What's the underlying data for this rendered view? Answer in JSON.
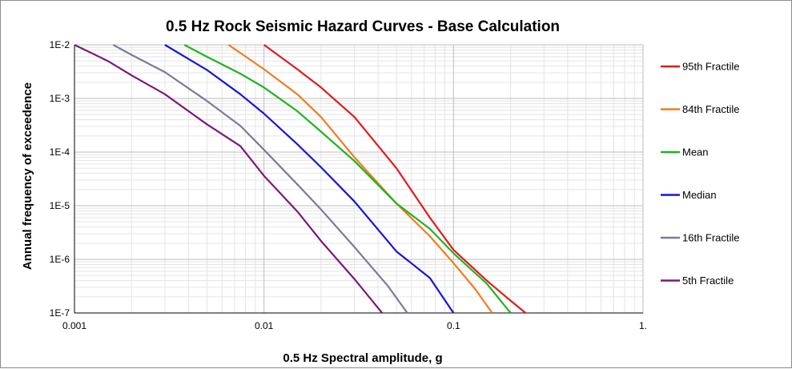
{
  "chart_data": {
    "type": "line",
    "title": "0.5 Hz Rock Seismic Hazard Curves - Base Calculation",
    "xlabel": "0.5 Hz Spectral amplitude, g",
    "ylabel": "Annual frequency of exceedence",
    "x_scale": "log",
    "y_scale": "log",
    "xlim": [
      0.001,
      1
    ],
    "ylim": [
      1e-07,
      0.01
    ],
    "x_ticks": [
      {
        "value": 0.001,
        "label": "0.001"
      },
      {
        "value": 0.01,
        "label": "0.01"
      },
      {
        "value": 0.1,
        "label": "0.1"
      },
      {
        "value": 1,
        "label": "1."
      }
    ],
    "y_ticks": [
      {
        "value": 0.01,
        "label": "1E-2"
      },
      {
        "value": 0.001,
        "label": "1E-3"
      },
      {
        "value": 0.0001,
        "label": "1E-4"
      },
      {
        "value": 1e-05,
        "label": "1E-5"
      },
      {
        "value": 1e-06,
        "label": "1E-6"
      },
      {
        "value": 1e-07,
        "label": "1E-7"
      }
    ],
    "grid": true,
    "legend_position": "right",
    "series": [
      {
        "name": "95th Fractile",
        "color": "#e01b1b",
        "x": [
          0.01,
          0.015,
          0.02,
          0.03,
          0.05,
          0.075,
          0.1,
          0.15,
          0.2,
          0.24
        ],
        "y": [
          0.01,
          0.0035,
          0.0016,
          0.00045,
          5e-05,
          6e-06,
          1.5e-06,
          4e-07,
          1.7e-07,
          1e-07
        ]
      },
      {
        "name": "84th Fractile",
        "color": "#f07d1e",
        "x": [
          0.0065,
          0.01,
          0.015,
          0.02,
          0.03,
          0.05,
          0.075,
          0.1,
          0.13,
          0.16
        ],
        "y": [
          0.01,
          0.0035,
          0.0012,
          0.00045,
          8e-05,
          1.1e-05,
          2.7e-06,
          8.5e-07,
          2.8e-07,
          1e-07
        ]
      },
      {
        "name": "Mean",
        "color": "#22b322",
        "x": [
          0.0038,
          0.005,
          0.0075,
          0.01,
          0.015,
          0.02,
          0.03,
          0.05,
          0.075,
          0.1,
          0.15,
          0.2
        ],
        "y": [
          0.01,
          0.006,
          0.0029,
          0.0016,
          0.00058,
          0.00024,
          6.8e-05,
          1.1e-05,
          3.7e-06,
          1.3e-06,
          3.5e-07,
          1e-07
        ]
      },
      {
        "name": "Median",
        "color": "#1616d8",
        "x": [
          0.003,
          0.005,
          0.0075,
          0.01,
          0.015,
          0.02,
          0.03,
          0.05,
          0.075,
          0.1
        ],
        "y": [
          0.01,
          0.0034,
          0.0012,
          0.00052,
          0.00014,
          5.2e-05,
          1.2e-05,
          1.4e-06,
          4.5e-07,
          1e-07
        ]
      },
      {
        "name": "16th Fractile",
        "color": "#7b7b9c",
        "x": [
          0.0016,
          0.002,
          0.003,
          0.005,
          0.0075,
          0.01,
          0.015,
          0.02,
          0.03,
          0.045,
          0.057
        ],
        "y": [
          0.01,
          0.0065,
          0.0031,
          0.0009,
          0.00031,
          0.00011,
          2.5e-05,
          8.5e-06,
          1.7e-06,
          3.2e-07,
          1e-07
        ]
      },
      {
        "name": "5th Fractile",
        "color": "#7a1a7a",
        "x": [
          0.001,
          0.0015,
          0.002,
          0.003,
          0.005,
          0.0075,
          0.01,
          0.015,
          0.02,
          0.03,
          0.042
        ],
        "y": [
          0.01,
          0.005,
          0.0027,
          0.0012,
          0.00033,
          0.00013,
          3.6e-05,
          7.8e-06,
          2.2e-06,
          4.3e-07,
          1e-07
        ]
      }
    ]
  }
}
